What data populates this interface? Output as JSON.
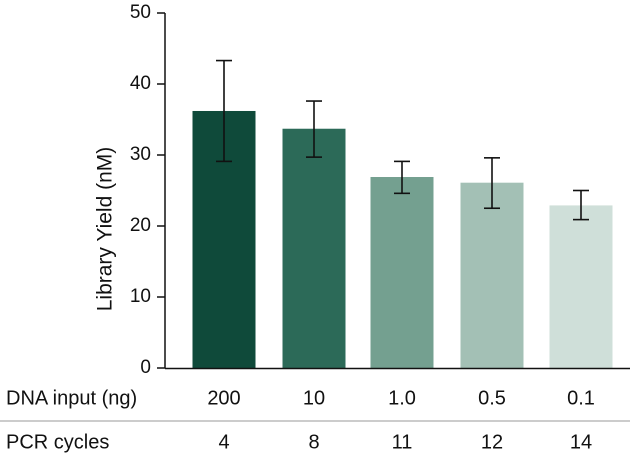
{
  "chart_data": {
    "type": "bar",
    "ylabel": "Library Yield (nM)",
    "ylim": [
      0,
      50
    ],
    "yticks": [
      0,
      10,
      20,
      30,
      40,
      50
    ],
    "grid": false,
    "categories": [
      "200",
      "10",
      "1.0",
      "0.5",
      "0.1"
    ],
    "values": [
      36.2,
      33.7,
      26.9,
      26.1,
      22.9
    ],
    "error_low": [
      29.1,
      29.7,
      24.6,
      22.5,
      20.9
    ],
    "error_high": [
      43.3,
      37.6,
      29.1,
      29.6,
      25.0
    ],
    "bar_colors": [
      "#0f4a3a",
      "#2c6a58",
      "#74a090",
      "#a3c0b5",
      "#cfdfd9"
    ],
    "table": {
      "rows": [
        {
          "label": "DNA input (ng)",
          "values": [
            "200",
            "10",
            "1.0",
            "0.5",
            "0.1"
          ]
        },
        {
          "label": "PCR cycles",
          "values": [
            "4",
            "8",
            "11",
            "12",
            "14"
          ]
        }
      ]
    }
  }
}
